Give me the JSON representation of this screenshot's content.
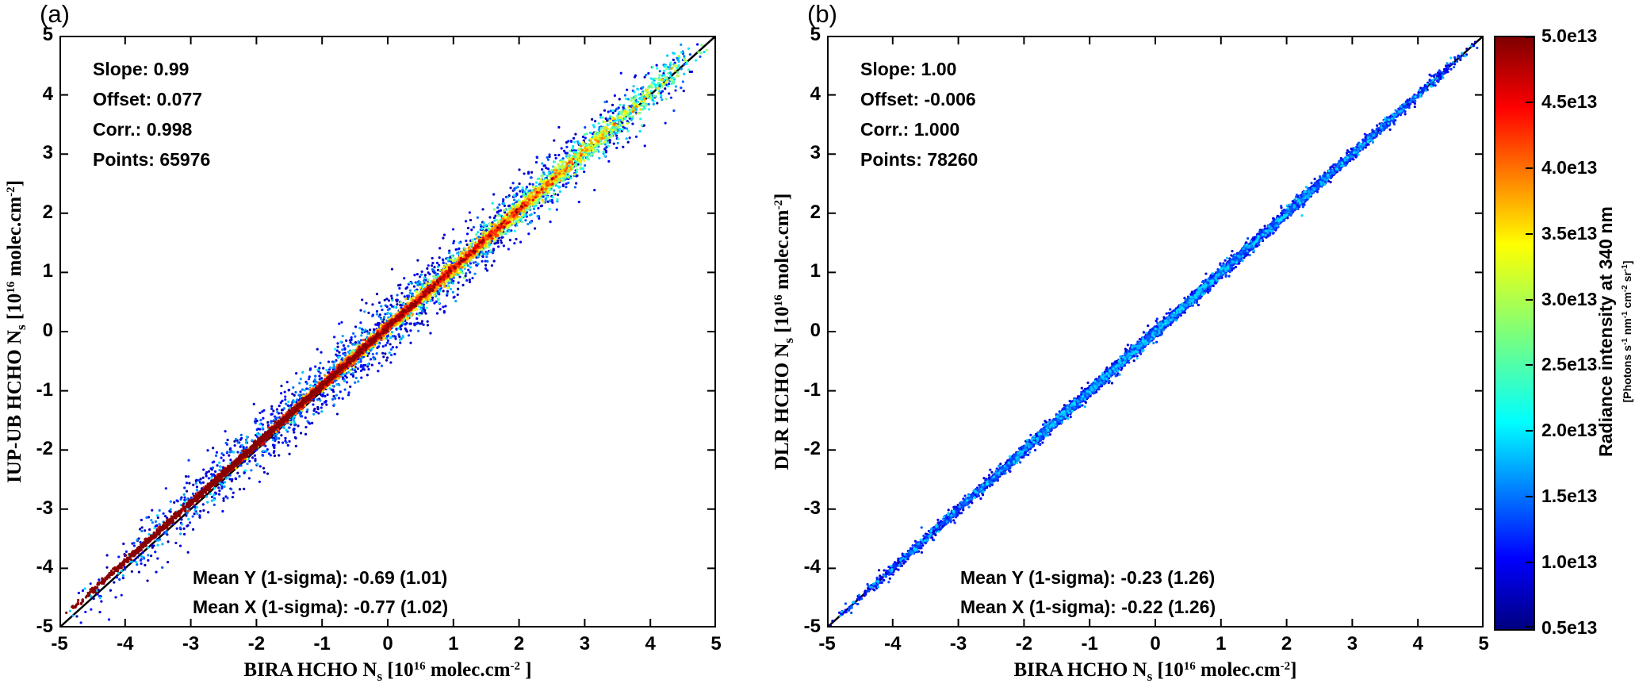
{
  "chart_data": [
    {
      "type": "scatter",
      "tag": "(a)",
      "stats_lines": [
        "Slope: 0.99",
        "Offset: 0.077",
        "Corr.: 0.998",
        "Points: 65976"
      ],
      "mean_lines": [
        "Mean Y (1-sigma): -0.69 (1.01)",
        "Mean X (1-sigma): -0.77 (1.02)"
      ],
      "fit": {
        "slope": 0.99,
        "offset": 0.077,
        "correlation": 0.998,
        "n_points": 65976,
        "mean_y": -0.69,
        "mean_y_1sigma": 1.01,
        "mean_x": -0.77,
        "mean_x_1sigma": 1.02
      },
      "reference_line": "y = x",
      "x_axis": {
        "label_plain": "BIRA HCHO Ns [10^16 molec.cm^-2]",
        "range": [
          -5,
          5
        ],
        "tick_labels": [
          "-5",
          "-4",
          "-3",
          "-2",
          "-1",
          "0",
          "1",
          "2",
          "3",
          "4",
          "5"
        ]
      },
      "y_axis": {
        "label_plain": "IUP-UB HCHO Ns [10^16 molec.cm^-2]",
        "range": [
          -5,
          5
        ],
        "tick_labels": [
          "-5",
          "-4",
          "-3",
          "-2",
          "-1",
          "0",
          "1",
          "2",
          "3",
          "4",
          "5"
        ]
      },
      "xlabel_parts": {
        "p1": "BIRA  HCHO N",
        "sub1": "s",
        "p2": " [10",
        "sup1": "16",
        "p3": " molec.cm",
        "sup2": "-2",
        "p4": " ]"
      },
      "ylabel_parts": {
        "p1": "IUP-UB  HCHO N",
        "sub1": "s",
        "p2": " [10",
        "sup1": "16",
        "p3": " molec.cm",
        "sup2": "-2",
        "p4": "]"
      },
      "color_by": "Radiance intensity at 340 nm",
      "grid": false,
      "legend": false
    },
    {
      "type": "scatter",
      "tag": "(b)",
      "stats_lines": [
        "Slope: 1.00",
        "Offset: -0.006",
        "Corr.: 1.000",
        "Points: 78260"
      ],
      "mean_lines": [
        "Mean Y (1-sigma): -0.23 (1.26)",
        "Mean X (1-sigma): -0.22 (1.26)"
      ],
      "fit": {
        "slope": 1.0,
        "offset": -0.006,
        "correlation": 1.0,
        "n_points": 78260,
        "mean_y": -0.23,
        "mean_y_1sigma": 1.26,
        "mean_x": -0.22,
        "mean_x_1sigma": 1.26
      },
      "reference_line": "y = x",
      "x_axis": {
        "label_plain": "BIRA HCHO Ns [10^16 molec.cm^-2]",
        "range": [
          -5,
          5
        ],
        "tick_labels": [
          "-5",
          "-4",
          "-3",
          "-2",
          "-1",
          "0",
          "1",
          "2",
          "3",
          "4",
          "5"
        ]
      },
      "y_axis": {
        "label_plain": "DLR HCHO Ns [10^16 molec.cm^-2]",
        "range": [
          -5,
          5
        ],
        "tick_labels": [
          "-5",
          "-4",
          "-3",
          "-2",
          "-1",
          "0",
          "1",
          "2",
          "3",
          "4",
          "5"
        ]
      },
      "xlabel_parts": {
        "p1": "BIRA  HCHO N",
        "sub1": "s",
        "p2": " [10",
        "sup1": "16",
        "p3": " molec.cm",
        "sup2": "-2",
        "p4": "]"
      },
      "ylabel_parts": {
        "p1": "DLR  HCHO N",
        "sub1": "s",
        "p2": " [10",
        "sup1": "16",
        "p3": " molec.cm",
        "sup2": "-2",
        "p4": "]"
      },
      "color_by": "Radiance intensity at 340 nm",
      "grid": false,
      "legend": false
    }
  ],
  "colorbar": {
    "title": "Radiance intensity at 340 nm",
    "units_plain": "[Photons s-1 nm-1 cm-2 sr-1]",
    "units_parts": {
      "p1": "[Photons s",
      "s1": "-1",
      "p2": " nm",
      "s2": "-1",
      "p3": " cm",
      "s3": "-2",
      "p4": " sr",
      "s4": "-1",
      "p5": "]"
    },
    "tick_labels": [
      "5.0e13",
      "4.5e13",
      "4.0e13",
      "3.5e13",
      "3.0e13",
      "2.5e13",
      "2.0e13",
      "1.5e13",
      "1.0e13",
      "0.5e13"
    ],
    "range": [
      5000000000000.0,
      50000000000000.0
    ],
    "colormap": "jet"
  }
}
